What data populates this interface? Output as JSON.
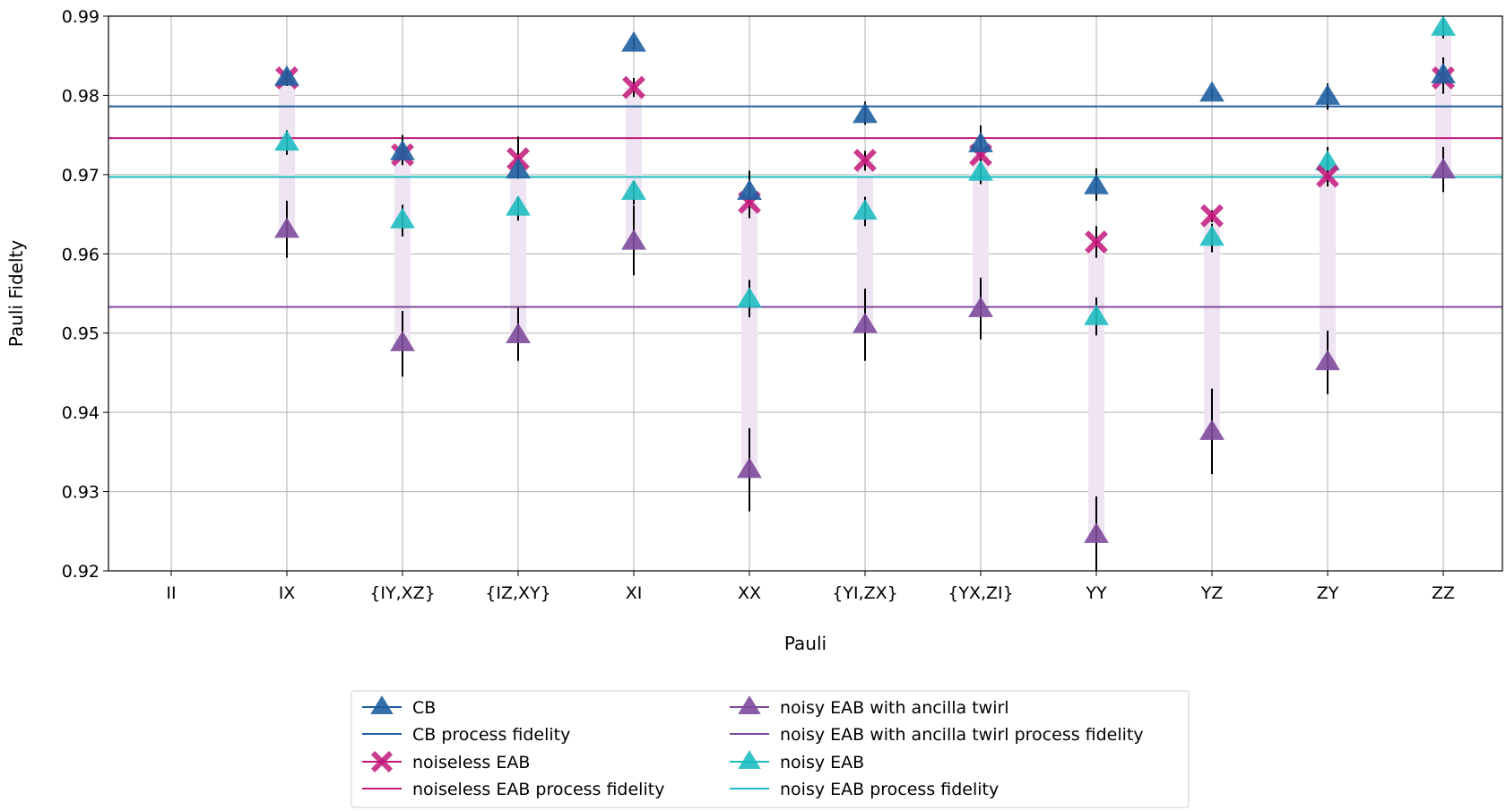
{
  "chart_data": {
    "type": "scatter",
    "title": "",
    "xlabel": "Pauli",
    "ylabel": "Pauli Fidelty",
    "ylim": [
      0.92,
      0.99
    ],
    "yticks": [
      "0.92",
      "0.93",
      "0.94",
      "0.95",
      "0.96",
      "0.97",
      "0.98",
      "0.99"
    ],
    "grid": true,
    "categories": [
      "II",
      "IX",
      "{IY,XZ}",
      "{IZ,XY}",
      "XI",
      "XX",
      "{YI,ZX}",
      "{YX,ZI}",
      "YY",
      "YZ",
      "ZY",
      "ZZ"
    ],
    "legend_position": "bottom-center",
    "colors": {
      "cb": "#1f5fa0",
      "noiseless": "#c2187a",
      "noisy": "#1ebcc0",
      "ancilla": "#7d4a9b",
      "band": "#efe4f1",
      "grid": "#b0b0b0"
    },
    "series": [
      {
        "key": "cb",
        "name": "CB",
        "marker": "triangle",
        "values": [
          null,
          0.9822,
          0.9728,
          0.9705,
          0.9865,
          0.9678,
          0.9775,
          0.9738,
          0.9685,
          0.9802,
          0.9798,
          0.9825
        ],
        "err_low": [
          null,
          0.9812,
          0.9718,
          0.9695,
          0.9858,
          0.9645,
          0.9763,
          0.9722,
          0.9667,
          0.9795,
          0.9782,
          0.9802
        ],
        "err_high": [
          null,
          0.9832,
          0.9738,
          0.9715,
          0.9872,
          0.9705,
          0.9792,
          0.9762,
          0.9708,
          0.9809,
          0.9815,
          0.9848
        ]
      },
      {
        "key": "cb",
        "name": "CB process fidelity",
        "type": "hline",
        "value": 0.9786
      },
      {
        "key": "noiseless",
        "name": "noiseless EAB",
        "marker": "x",
        "values": [
          null,
          0.9822,
          0.9725,
          0.972,
          0.981,
          0.9665,
          0.9718,
          0.9725,
          0.9615,
          0.9648,
          0.9698,
          0.9822
        ],
        "err_low": [
          null,
          0.9812,
          0.9712,
          0.9708,
          0.9798,
          0.9645,
          0.9705,
          0.9712,
          0.9595,
          0.964,
          0.9685,
          0.9812
        ],
        "err_high": [
          null,
          0.9832,
          0.975,
          0.9748,
          0.9822,
          0.9685,
          0.973,
          0.974,
          0.9635,
          0.9655,
          0.971,
          0.9835
        ]
      },
      {
        "key": "noiseless",
        "name": "noiseless EAB process fidelity",
        "type": "hline",
        "value": 0.9746
      },
      {
        "key": "ancilla",
        "name": "noisy EAB with ancilla twirl",
        "marker": "triangle",
        "values": [
          null,
          0.963,
          0.9487,
          0.9497,
          0.9615,
          0.9327,
          0.951,
          0.953,
          0.9245,
          0.9375,
          0.9463,
          0.9705
        ],
        "err_low": [
          null,
          0.9595,
          0.9445,
          0.9465,
          0.9573,
          0.9275,
          0.9465,
          0.9492,
          0.92,
          0.9322,
          0.9423,
          0.9678
        ],
        "err_high": [
          null,
          0.9667,
          0.9528,
          0.9532,
          0.9661,
          0.938,
          0.9556,
          0.957,
          0.9294,
          0.943,
          0.9503,
          0.9735
        ]
      },
      {
        "key": "ancilla",
        "name": "noisy EAB with ancilla twirl process fidelity",
        "type": "hline",
        "value": 0.9533
      },
      {
        "key": "noisy",
        "name": "noisy EAB",
        "marker": "triangle",
        "values": [
          null,
          0.974,
          0.9642,
          0.9658,
          0.9678,
          0.9542,
          0.9653,
          0.9702,
          0.952,
          0.962,
          0.9715,
          0.9885
        ],
        "err_low": [
          null,
          0.9725,
          0.9622,
          0.9642,
          0.9662,
          0.952,
          0.9635,
          0.9688,
          0.9497,
          0.9602,
          0.9698,
          0.9872
        ],
        "err_high": [
          null,
          0.9756,
          0.9662,
          0.9672,
          0.9692,
          0.9567,
          0.9672,
          0.9716,
          0.9545,
          0.9638,
          0.9735,
          0.9898
        ]
      },
      {
        "key": "noisy",
        "name": "noisy EAB process fidelity",
        "type": "hline",
        "value": 0.9697
      }
    ]
  }
}
